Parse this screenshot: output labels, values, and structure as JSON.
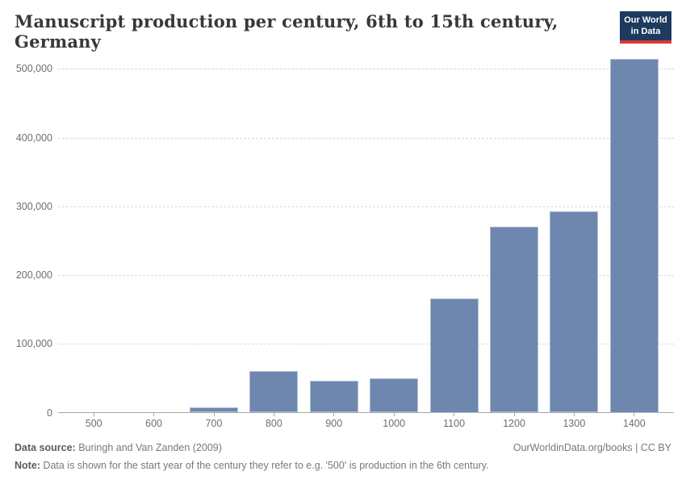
{
  "header": {
    "title": "Manuscript production per century, 6th to 15th century, Germany",
    "logo": {
      "line1": "Our World",
      "line2": "in Data",
      "bg_color": "#1d3a5f",
      "accent_color": "#d73a33",
      "text_color": "#ffffff"
    }
  },
  "chart_data": {
    "type": "bar",
    "title": "Manuscript production per century, 6th to 15th century, Germany",
    "categories": [
      500,
      600,
      700,
      800,
      900,
      1000,
      1100,
      1200,
      1300,
      1400
    ],
    "values": [
      0,
      0,
      8000,
      60000,
      46000,
      50000,
      166000,
      270000,
      293000,
      515000
    ],
    "xlabel": "",
    "ylabel": "",
    "ylim": [
      0,
      530000
    ],
    "yticks": [
      0,
      100000,
      200000,
      300000,
      400000,
      500000
    ],
    "ytick_labels": [
      "0",
      "100,000",
      "200,000",
      "300,000",
      "400,000",
      "500,000"
    ],
    "grid": "horizontal-dashed",
    "legend": "none",
    "bar_color": "#6e87ae",
    "grid_color": "#d9d9d9",
    "axis_color": "#a5a5a5",
    "label_color": "#6e6e6e"
  },
  "footer": {
    "datasource_label": "Data source:",
    "datasource_value": " Buringh and Van Zanden (2009)",
    "credit": "OurWorldinData.org/books | CC BY",
    "note_label": "Note:",
    "note_value": " Data is shown for the start year of the century they refer to e.g. '500' is production in the 6th century."
  }
}
